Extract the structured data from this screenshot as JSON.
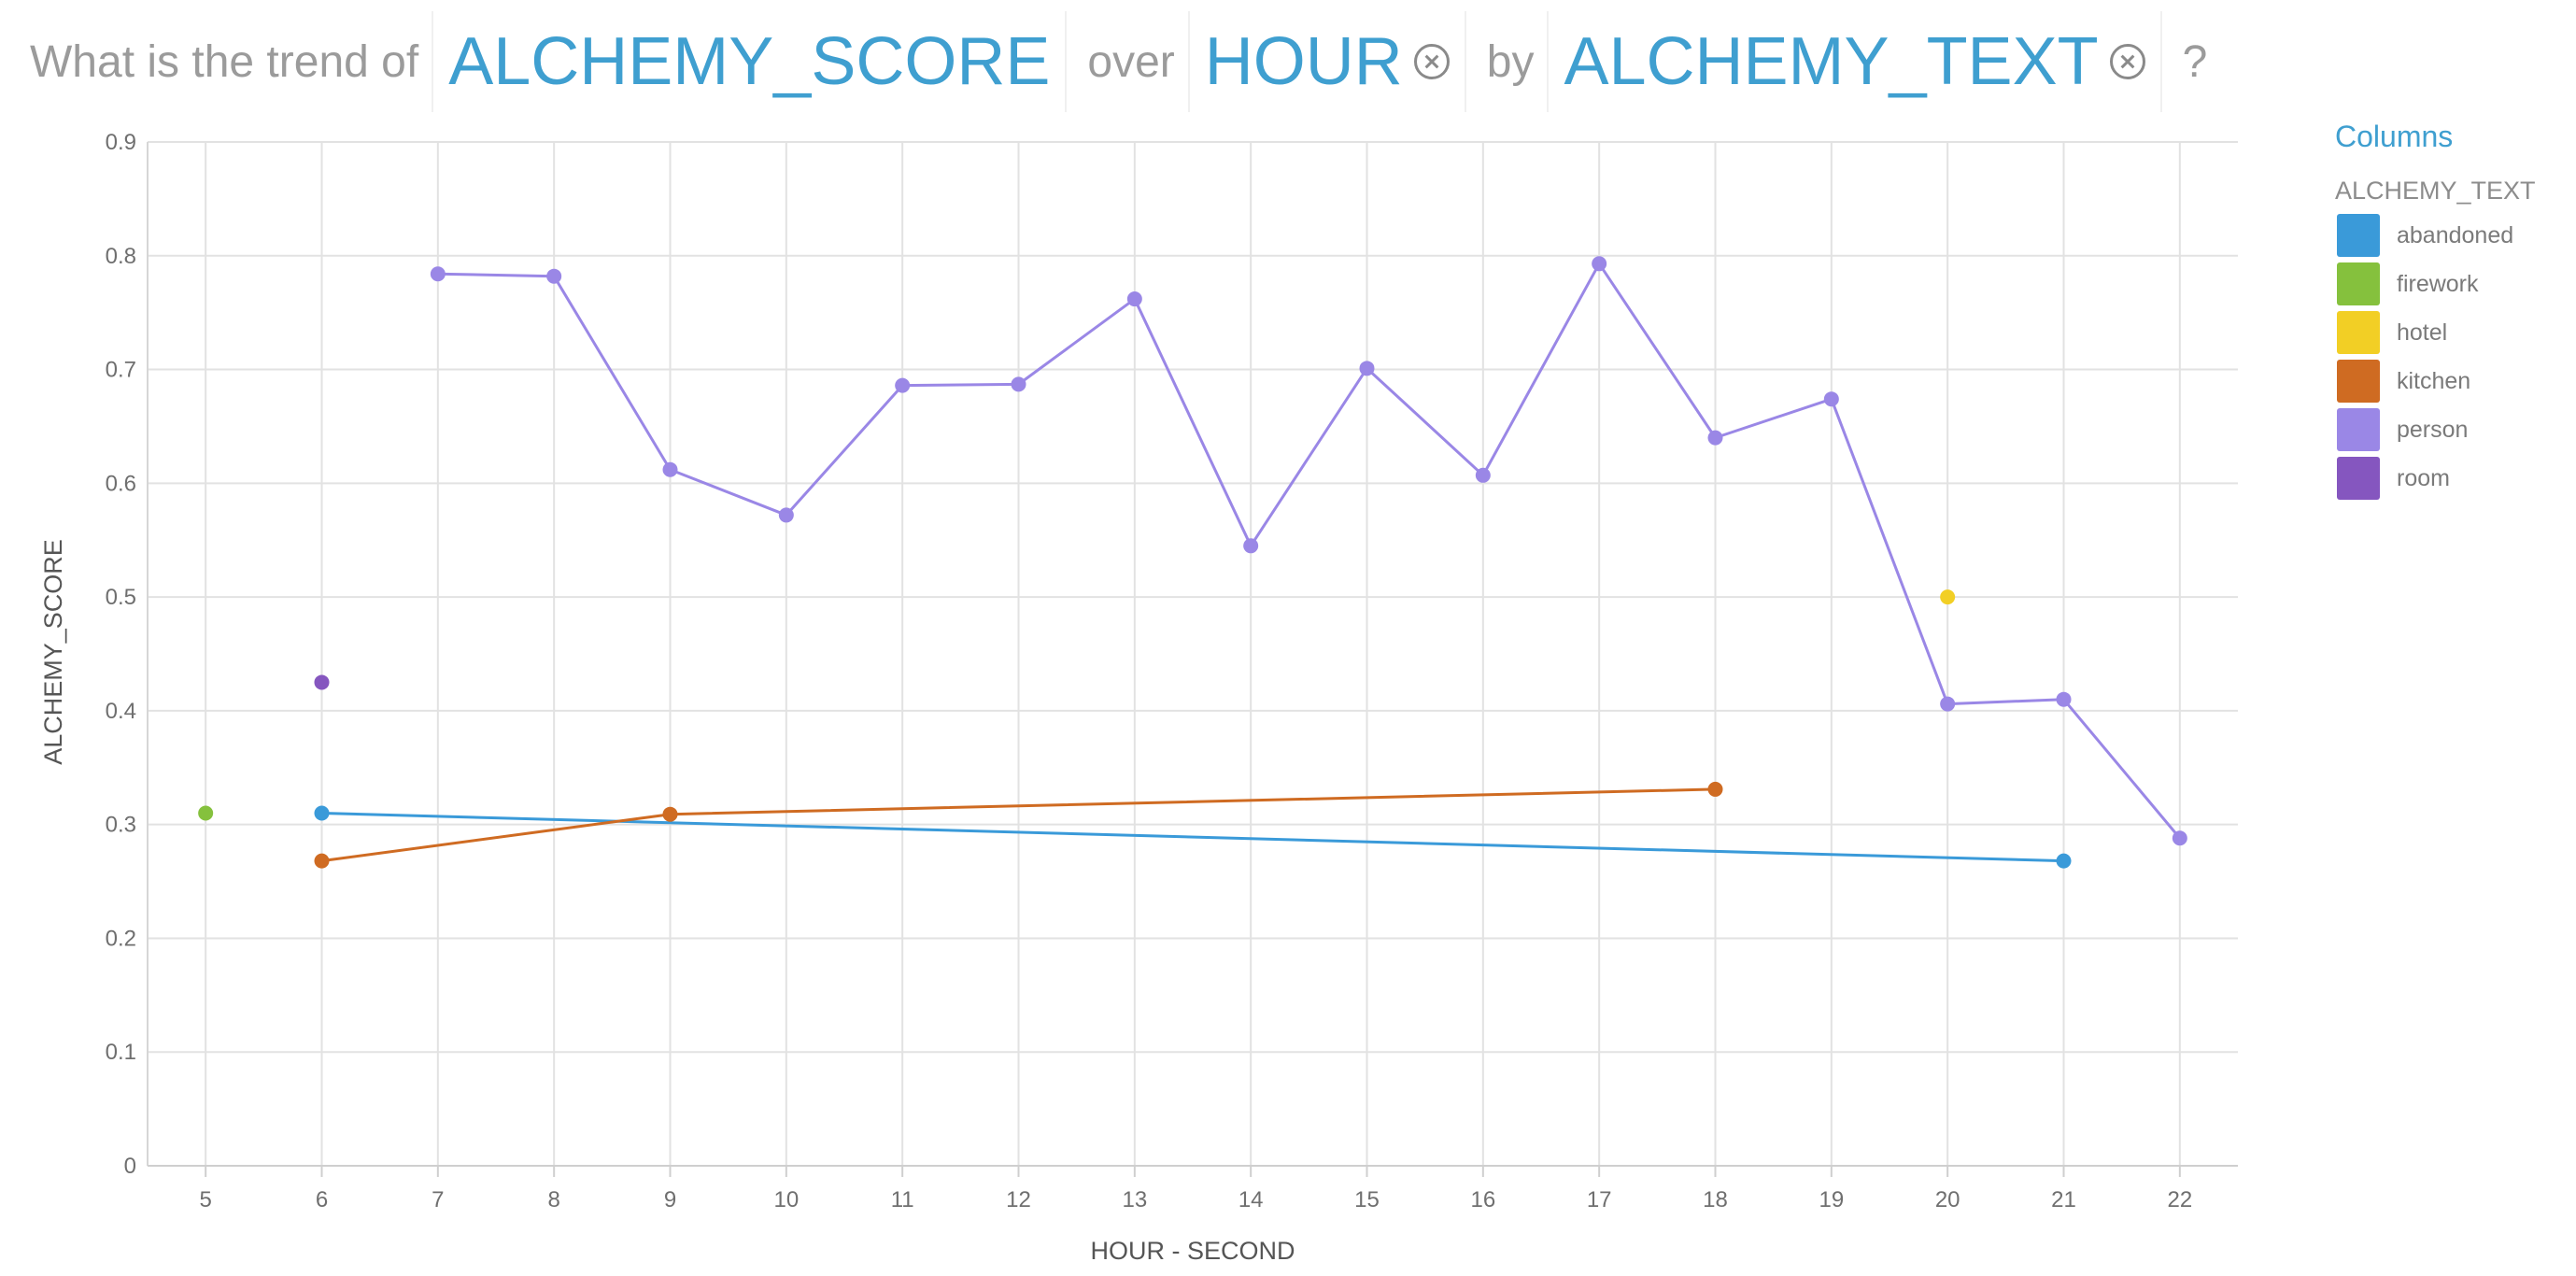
{
  "question": {
    "prefix": "What is the trend of",
    "measure": "ALCHEMY_SCORE",
    "over_word": "over",
    "dimension": "HOUR",
    "by_word": "by",
    "group": "ALCHEMY_TEXT",
    "suffix": "?"
  },
  "legend": {
    "title": "Columns",
    "field": "ALCHEMY_TEXT",
    "items": [
      {
        "label": "abandoned",
        "color": "#3a9ad9"
      },
      {
        "label": "firework",
        "color": "#85c13d"
      },
      {
        "label": "hotel",
        "color": "#f2cf25"
      },
      {
        "label": "kitchen",
        "color": "#cf6b22"
      },
      {
        "label": "person",
        "color": "#9a87e6"
      },
      {
        "label": "room",
        "color": "#8556bf"
      }
    ]
  },
  "chart_data": {
    "type": "line",
    "xlabel": "HOUR - SECOND",
    "ylabel": "ALCHEMY_SCORE",
    "x_ticks": [
      5,
      6,
      7,
      8,
      9,
      10,
      11,
      12,
      13,
      14,
      15,
      16,
      17,
      18,
      19,
      20,
      21,
      22
    ],
    "y_ticks": [
      0,
      0.1,
      0.2,
      0.3,
      0.4,
      0.5,
      0.6,
      0.7,
      0.8,
      0.9
    ],
    "y_tick_labels": [
      "0",
      "0.1",
      "0.2",
      "0.3",
      "0.4",
      "0.5",
      "0.6",
      "0.7",
      "0.8",
      "0.9"
    ],
    "xlim": [
      4.5,
      22.5
    ],
    "ylim": [
      0,
      0.9
    ],
    "grid": true,
    "legend_position": "right",
    "series": [
      {
        "name": "abandoned",
        "color": "#3a9ad9",
        "points": [
          [
            6,
            0.31
          ],
          [
            21,
            0.268
          ]
        ]
      },
      {
        "name": "firework",
        "color": "#85c13d",
        "points": [
          [
            5,
            0.31
          ]
        ]
      },
      {
        "name": "hotel",
        "color": "#f2cf25",
        "points": [
          [
            20,
            0.5
          ]
        ]
      },
      {
        "name": "kitchen",
        "color": "#cf6b22",
        "points": [
          [
            6,
            0.268
          ],
          [
            9,
            0.309
          ],
          [
            18,
            0.331
          ]
        ]
      },
      {
        "name": "person",
        "color": "#9a87e6",
        "points": [
          [
            7,
            0.784
          ],
          [
            8,
            0.782
          ],
          [
            9,
            0.612
          ],
          [
            10,
            0.572
          ],
          [
            11,
            0.686
          ],
          [
            12,
            0.687
          ],
          [
            13,
            0.762
          ],
          [
            14,
            0.545
          ],
          [
            15,
            0.701
          ],
          [
            16,
            0.607
          ],
          [
            17,
            0.793
          ],
          [
            18,
            0.64
          ],
          [
            19,
            0.674
          ],
          [
            20,
            0.406
          ],
          [
            21,
            0.41
          ],
          [
            22,
            0.288
          ]
        ]
      },
      {
        "name": "room",
        "color": "#8556bf",
        "points": [
          [
            6,
            0.425
          ]
        ]
      }
    ]
  }
}
